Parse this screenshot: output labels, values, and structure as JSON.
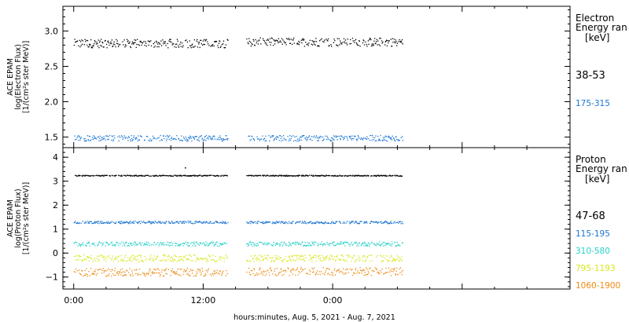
{
  "x_axis": {
    "tick_labels": [
      "0:00",
      "12:00",
      "0:00"
    ],
    "caption": "hours:minutes, Aug.  5, 2021 - Aug.  7, 2021"
  },
  "chart_data": [
    {
      "type": "scatter",
      "panel": "electron",
      "ylabel_lines": [
        "ACE EPAM",
        "log(Electron Flux)",
        "[1/(cm²s ster MeV)]"
      ],
      "xlim_hours": [
        -1.0,
        46.0
      ],
      "ylim": [
        1.35,
        3.35
      ],
      "yticks": [
        1.5,
        2.0,
        2.5,
        3.0
      ],
      "ytick_labels": [
        "1.5",
        "2.0",
        "2.5",
        "3.0"
      ],
      "legend": {
        "title_lines": [
          "Electron",
          "Energy ran"
        ],
        "unit": "[keV]",
        "placement": "right"
      },
      "data_gap_hours": [
        14.3,
        16.0
      ],
      "series": [
        {
          "name": "38-53",
          "color": "#000000",
          "x_hours": [
            0,
            30.5
          ],
          "y_segments": [
            {
              "x": [
                0,
                14.3
              ],
              "mean": 2.83,
              "spread": 0.06
            },
            {
              "x": [
                16.0,
                30.5
              ],
              "mean": 2.85,
              "spread": 0.06
            }
          ]
        },
        {
          "name": "175-315",
          "color": "#1a75d2",
          "x_hours": [
            0,
            30.5
          ],
          "y_segments": [
            {
              "x": [
                0,
                14.3
              ],
              "mean": 1.49,
              "spread": 0.04
            },
            {
              "x": [
                16.0,
                30.5
              ],
              "mean": 1.49,
              "spread": 0.04
            }
          ]
        }
      ]
    },
    {
      "type": "scatter",
      "panel": "proton",
      "ylabel_lines": [
        "ACE EPAM",
        "log(Proton Flux)",
        "[1/(cm²s ster MeV)]"
      ],
      "xlim_hours": [
        -1.0,
        46.0
      ],
      "ylim": [
        -1.5,
        4.4
      ],
      "yticks": [
        -1,
        0,
        1,
        2,
        3,
        4
      ],
      "ytick_labels": [
        "−1",
        "0",
        "1",
        "2",
        "3",
        "4"
      ],
      "legend": {
        "title_lines": [
          "Proton",
          "Energy ran"
        ],
        "unit": "[keV]",
        "placement": "right"
      },
      "data_gap_hours": [
        14.3,
        16.0
      ],
      "series": [
        {
          "name": "47-68",
          "color": "#000000",
          "y_segments": [
            {
              "x": [
                0,
                14.3
              ],
              "mean": 3.25,
              "spread": 0.02
            },
            {
              "x": [
                16.0,
                30.5
              ],
              "mean": 3.25,
              "spread": 0.02
            }
          ],
          "outlier": {
            "x": 10.3,
            "y": 3.58
          }
        },
        {
          "name": "115-195",
          "color": "#1a75d2",
          "y_segments": [
            {
              "x": [
                0,
                14.3
              ],
              "mean": 1.3,
              "spread": 0.05
            },
            {
              "x": [
                16.0,
                30.5
              ],
              "mean": 1.3,
              "spread": 0.05
            }
          ]
        },
        {
          "name": "310-580",
          "color": "#26d1c8",
          "y_segments": [
            {
              "x": [
                0,
                14.3
              ],
              "mean": 0.4,
              "spread": 0.09
            },
            {
              "x": [
                16.0,
                30.5
              ],
              "mean": 0.4,
              "spread": 0.09
            }
          ]
        },
        {
          "name": "795-1193",
          "color": "#d7e61a",
          "y_segments": [
            {
              "x": [
                0,
                14.3
              ],
              "mean": -0.2,
              "spread": 0.14
            },
            {
              "x": [
                16.0,
                30.5
              ],
              "mean": -0.2,
              "spread": 0.14
            }
          ]
        },
        {
          "name": "1060-1900",
          "color": "#ee8a12",
          "y_segments": [
            {
              "x": [
                0,
                14.3
              ],
              "mean": -0.78,
              "spread": 0.17
            },
            {
              "x": [
                16.0,
                30.5
              ],
              "mean": -0.75,
              "spread": 0.17
            }
          ]
        }
      ]
    }
  ]
}
